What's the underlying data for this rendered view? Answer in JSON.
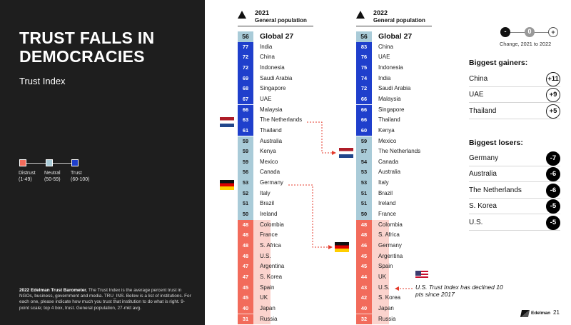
{
  "slide": {
    "title": "TRUST FALLS IN DEMOCRACIES",
    "subtitle": "Trust Index",
    "legend": [
      {
        "label": "Distrust",
        "range": "(1-49)",
        "color": "#f26b5b"
      },
      {
        "label": "Neutral",
        "range": "(50-59)",
        "color": "#a9cbd8"
      },
      {
        "label": "Trust",
        "range": "(60-100)",
        "color": "#1f3fcc"
      }
    ],
    "footnote_bold": "2022 Edelman Trust Barometer.",
    "footnote_text": " The Trust Index is the average percent trust in NGOs, business, government and media. TRU_INS. Below is a list of institutions. For each one, please indicate how much you trust that institution to do what is right. 9-point scale; top 4 box, trust. General population, 27-mkt avg.",
    "brand": "Edelman",
    "page_number": "21"
  },
  "colors": {
    "trust": "#1f3fcc",
    "neutral": "#a9cbd8",
    "distrust": "#f26b5b",
    "distrust_bg": "#fbd3cd",
    "arrow": "#e43b2c"
  },
  "columns": [
    {
      "year": "2021",
      "population": "General population",
      "global": {
        "score": 56,
        "label": "Global 27"
      },
      "rows": [
        {
          "country": "India",
          "score": 77
        },
        {
          "country": "China",
          "score": 72
        },
        {
          "country": "Indonesia",
          "score": 72
        },
        {
          "country": "Saudi Arabia",
          "score": 69
        },
        {
          "country": "Singapore",
          "score": 68
        },
        {
          "country": "UAE",
          "score": 67
        },
        {
          "country": "Malaysia",
          "score": 66
        },
        {
          "country": "The Netherlands",
          "score": 63
        },
        {
          "country": "Thailand",
          "score": 61
        },
        {
          "country": "Australia",
          "score": 59
        },
        {
          "country": "Kenya",
          "score": 59
        },
        {
          "country": "Mexico",
          "score": 59
        },
        {
          "country": "Canada",
          "score": 56
        },
        {
          "country": "Germany",
          "score": 53
        },
        {
          "country": "Italy",
          "score": 52
        },
        {
          "country": "Brazil",
          "score": 51
        },
        {
          "country": "Ireland",
          "score": 50
        },
        {
          "country": "Colombia",
          "score": 48
        },
        {
          "country": "France",
          "score": 48
        },
        {
          "country": "S. Africa",
          "score": 48
        },
        {
          "country": "U.S.",
          "score": 48
        },
        {
          "country": "Argentina",
          "score": 47
        },
        {
          "country": "S. Korea",
          "score": 47
        },
        {
          "country": "Spain",
          "score": 45
        },
        {
          "country": "UK",
          "score": 45
        },
        {
          "country": "Japan",
          "score": 40
        },
        {
          "country": "Russia",
          "score": 31
        }
      ]
    },
    {
      "year": "2022",
      "population": "General population",
      "global": {
        "score": 56,
        "label": "Global 27"
      },
      "rows": [
        {
          "country": "China",
          "score": 83
        },
        {
          "country": "UAE",
          "score": 76
        },
        {
          "country": "Indonesia",
          "score": 75
        },
        {
          "country": "India",
          "score": 74
        },
        {
          "country": "Saudi Arabia",
          "score": 72
        },
        {
          "country": "Malaysia",
          "score": 66
        },
        {
          "country": "Singapore",
          "score": 66
        },
        {
          "country": "Thailand",
          "score": 66
        },
        {
          "country": "Kenya",
          "score": 60
        },
        {
          "country": "Mexico",
          "score": 59
        },
        {
          "country": "The Netherlands",
          "score": 57
        },
        {
          "country": "Canada",
          "score": 54
        },
        {
          "country": "Australia",
          "score": 53
        },
        {
          "country": "Italy",
          "score": 53
        },
        {
          "country": "Brazil",
          "score": 51
        },
        {
          "country": "Ireland",
          "score": 51
        },
        {
          "country": "France",
          "score": 50
        },
        {
          "country": "Colombia",
          "score": 48
        },
        {
          "country": "S. Africa",
          "score": 48
        },
        {
          "country": "Germany",
          "score": 46
        },
        {
          "country": "Argentina",
          "score": 45
        },
        {
          "country": "Spain",
          "score": 45
        },
        {
          "country": "UK",
          "score": 44
        },
        {
          "country": "U.S.",
          "score": 43
        },
        {
          "country": "S. Korea",
          "score": 42
        },
        {
          "country": "Japan",
          "score": 40
        },
        {
          "country": "Russia",
          "score": 32
        }
      ]
    }
  ],
  "change_legend": {
    "symbols": [
      "-",
      "0",
      "+"
    ],
    "caption": "Change, 2021 to 2022"
  },
  "gainers": {
    "title": "Biggest gainers:",
    "items": [
      {
        "country": "China",
        "change": "+11"
      },
      {
        "country": "UAE",
        "change": "+9"
      },
      {
        "country": "Thailand",
        "change": "+5"
      }
    ]
  },
  "losers": {
    "title": "Biggest losers:",
    "items": [
      {
        "country": "Germany",
        "change": "-7"
      },
      {
        "country": "Australia",
        "change": "-6"
      },
      {
        "country": "The Netherlands",
        "change": "-6"
      },
      {
        "country": "S. Korea",
        "change": "-5"
      },
      {
        "country": "U.S.",
        "change": "-5"
      }
    ]
  },
  "us_note": "U.S. Trust Index has declined 10 pts since 2017"
}
